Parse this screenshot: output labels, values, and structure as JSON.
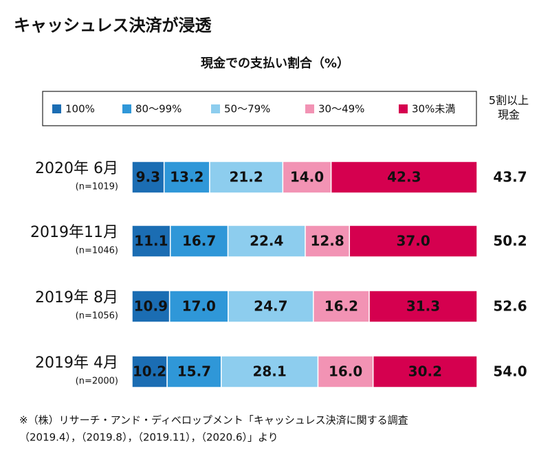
{
  "chart_data": {
    "type": "stacked-bar-horizontal",
    "title": "キャッシュレス決済が浸透",
    "subtitle": "現金での支払い割合（%）",
    "categories": [
      "2020年 6月",
      "2019年11月",
      "2019年 8月",
      "2019年 4月"
    ],
    "category_notes": [
      "(n=1019)",
      "(n=1046)",
      "(n=1056)",
      "(n=2000)"
    ],
    "series": [
      {
        "name": "100%",
        "color": "#1b6db3",
        "label_color": "#ffffff",
        "values": [
          9.3,
          11.1,
          10.9,
          10.2
        ],
        "value_labels": [
          "9.3",
          "11.1",
          "10.9",
          "10.2"
        ]
      },
      {
        "name": "80～99%",
        "color": "#2f97d8",
        "label_color": "#ffffff",
        "values": [
          13.2,
          16.7,
          17.0,
          15.7
        ],
        "value_labels": [
          "13.2",
          "16.7",
          "17.0",
          "15.7"
        ]
      },
      {
        "name": "50～79%",
        "color": "#8dcdee",
        "label_color": "#1c3566",
        "values": [
          21.2,
          22.4,
          24.7,
          28.1
        ],
        "value_labels": [
          "21.2",
          "22.4",
          "24.7",
          "28.1"
        ]
      },
      {
        "name": "30～49%",
        "color": "#f293b4",
        "label_color": "#ffffff",
        "values": [
          14.0,
          12.8,
          16.2,
          16.0
        ],
        "value_labels": [
          "14.0",
          "12.8",
          "16.2",
          "16.0"
        ]
      },
      {
        "name": "30%未満",
        "color": "#d5004f",
        "label_color": "#ffffff",
        "values": [
          42.3,
          37.0,
          31.3,
          30.2
        ],
        "value_labels": [
          "42.3",
          "37.0",
          "31.3",
          "30.2"
        ]
      }
    ],
    "side_column": {
      "header": [
        "5割以上",
        "現金"
      ],
      "values": [
        43.7,
        50.2,
        52.6,
        54.0
      ],
      "value_labels": [
        "43.7",
        "50.2",
        "52.6",
        "54.0"
      ]
    },
    "footnote": [
      "※（株）リサーチ・アンド・ディベロップメント「キャッシュレス決済に関する調査",
      "（2019.4），（2019.8），（2019.11），（2020.6）」より"
    ]
  }
}
